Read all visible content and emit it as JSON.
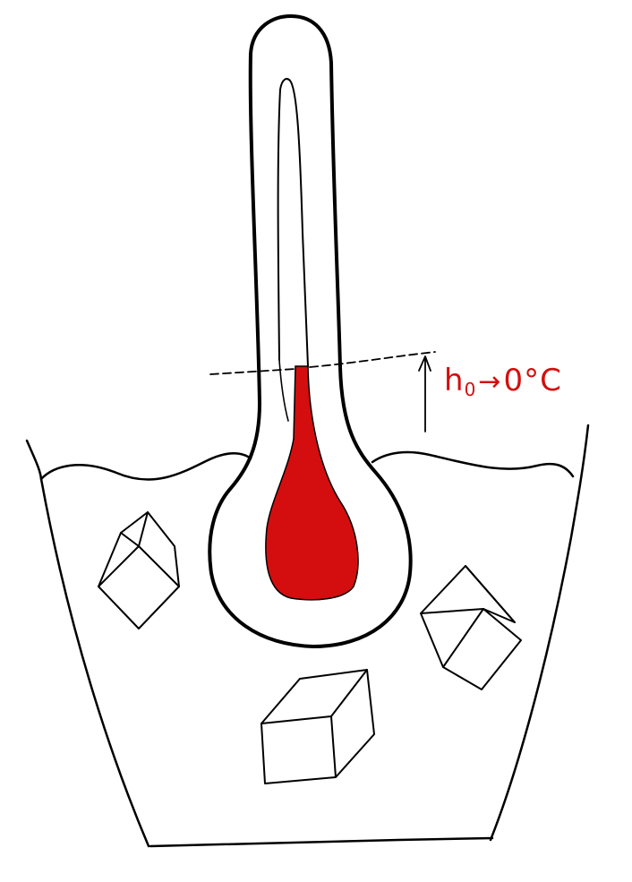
{
  "label": {
    "symbol": "h",
    "subscript": "0",
    "arrow": "→",
    "value": "0°C"
  },
  "colors": {
    "ink": "#000000",
    "liquid": "#d40e0e",
    "label": "#d40e0e",
    "background": "#ffffff"
  }
}
